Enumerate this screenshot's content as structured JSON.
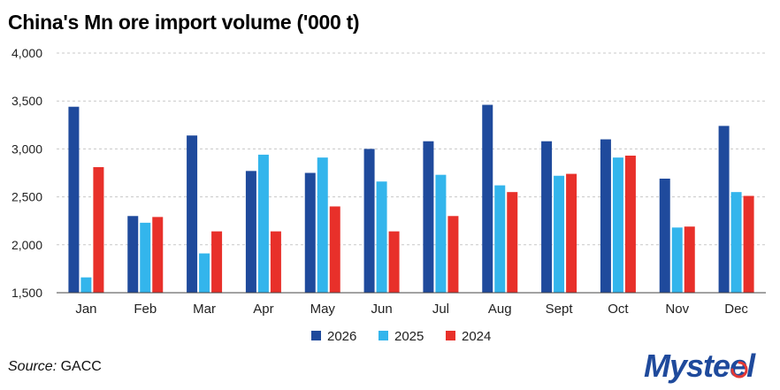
{
  "title": "China's Mn ore import volume ('000 t)",
  "source": {
    "label": "Source:",
    "value": "GACC"
  },
  "brand": {
    "logo_text": "Mysteel",
    "accent_color": "#e53935",
    "primary_color": "#1f4a9c"
  },
  "chart_data": {
    "type": "bar",
    "title": "China's Mn ore import volume ('000 t)",
    "xlabel": "",
    "ylabel": "",
    "categories": [
      "Jan",
      "Feb",
      "Mar",
      "Apr",
      "May",
      "Jun",
      "Jul",
      "Aug",
      "Sept",
      "Oct",
      "Nov",
      "Dec"
    ],
    "ylim": [
      1500,
      4000
    ],
    "yticks": [
      1500,
      2000,
      2500,
      3000,
      3500,
      4000
    ],
    "ytick_labels": [
      "1,500",
      "2,000",
      "2,500",
      "3,000",
      "3,500",
      "4,000"
    ],
    "grid": "horizontal dashed",
    "legend_position": "bottom-center",
    "series": [
      {
        "name": "2026",
        "color": "#1f4a9c",
        "values": [
          3440,
          2300,
          3140,
          2770,
          2750,
          3000,
          3080,
          3460,
          3080,
          3100,
          2690,
          3240
        ]
      },
      {
        "name": "2025",
        "color": "#33b5ec",
        "values": [
          1660,
          2230,
          1910,
          2940,
          2910,
          2660,
          2730,
          2620,
          2720,
          2910,
          2180,
          2550
        ]
      },
      {
        "name": "2024",
        "color": "#e8302a",
        "values": [
          2810,
          2290,
          2140,
          2140,
          2400,
          2140,
          2300,
          2550,
          2740,
          2930,
          2190,
          2510
        ]
      }
    ]
  }
}
